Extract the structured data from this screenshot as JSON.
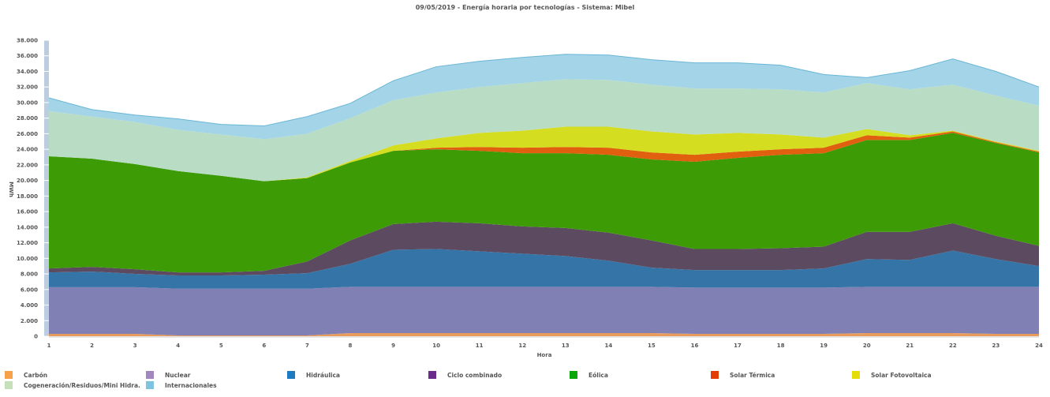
{
  "chart_data": {
    "type": "area",
    "stacked": true,
    "title": "09/05/2019 - Energía horaria por tecnologías - Sistema: Mibel",
    "xlabel": "Hora",
    "ylabel": "MWh",
    "ylim": [
      0,
      38000
    ],
    "yticks": [
      0,
      2000,
      4000,
      6000,
      8000,
      10000,
      12000,
      14000,
      16000,
      18000,
      20000,
      22000,
      24000,
      26000,
      28000,
      30000,
      32000,
      34000,
      36000,
      38000
    ],
    "ytick_labels": [
      "0",
      "2.000",
      "4.000",
      "6.000",
      "8.000",
      "10.000",
      "12.000",
      "14.000",
      "16.000",
      "18.000",
      "20.000",
      "22.000",
      "24.000",
      "26.000",
      "28.000",
      "30.000",
      "32.000",
      "34.000",
      "36.000",
      "38.000"
    ],
    "x": [
      "1",
      "2",
      "3",
      "4",
      "5",
      "6",
      "7",
      "8",
      "9",
      "10",
      "11",
      "12",
      "13",
      "14",
      "15",
      "16",
      "17",
      "18",
      "19",
      "20",
      "21",
      "22",
      "23",
      "24"
    ],
    "legend_position": "bottom",
    "series": [
      {
        "name": "Carbón",
        "color": "#e89c5c",
        "legend_color": "#f7a24a",
        "values": [
          300,
          300,
          300,
          100,
          100,
          100,
          100,
          400,
          400,
          400,
          400,
          400,
          400,
          400,
          400,
          300,
          300,
          300,
          300,
          400,
          400,
          400,
          300,
          300
        ]
      },
      {
        "name": "Nuclear",
        "color": "#8080b4",
        "legend_color": "#a187be",
        "values": [
          6000,
          6000,
          6000,
          6000,
          6000,
          6000,
          6000,
          5950,
          5950,
          5950,
          5950,
          5950,
          5950,
          5950,
          5950,
          5950,
          5950,
          5950,
          5950,
          5950,
          5950,
          5950,
          6050,
          6050
        ]
      },
      {
        "name": "Hidráulica",
        "color": "#3574a6",
        "legend_color": "#1f7bc1",
        "values": [
          1900,
          2000,
          1700,
          1700,
          1700,
          1800,
          2000,
          2950,
          4750,
          4850,
          4550,
          4250,
          3950,
          3350,
          2450,
          2250,
          2250,
          2250,
          2450,
          3550,
          3450,
          4650,
          3550,
          2650
        ]
      },
      {
        "name": "Ciclo combinado",
        "color": "#5c4a60",
        "legend_color": "#6a2c8a",
        "values": [
          500,
          600,
          600,
          400,
          400,
          500,
          1500,
          3000,
          3300,
          3500,
          3600,
          3500,
          3600,
          3600,
          3500,
          2700,
          2700,
          2800,
          2800,
          3500,
          3600,
          3500,
          3000,
          2600
        ]
      },
      {
        "name": "Eólica",
        "color": "#3d9b05",
        "legend_color": "#0aa70a",
        "values": [
          14400,
          13900,
          13500,
          13000,
          12400,
          11500,
          10700,
          10000,
          9400,
          9300,
          9300,
          9400,
          9600,
          10000,
          10400,
          11200,
          11700,
          12000,
          12000,
          11800,
          11800,
          11600,
          11900,
          12000
        ]
      },
      {
        "name": "Solar Térmica",
        "color": "#e06010",
        "legend_color": "#e33d02",
        "values": [
          0,
          0,
          0,
          0,
          0,
          0,
          0,
          0,
          0,
          200,
          500,
          700,
          800,
          900,
          900,
          900,
          800,
          700,
          700,
          600,
          300,
          200,
          100,
          100
        ]
      },
      {
        "name": "Solar Fotovoltaica",
        "color": "#d4dd20",
        "legend_color": "#e5dd0a",
        "values": [
          0,
          0,
          0,
          0,
          0,
          0,
          100,
          200,
          700,
          1200,
          1800,
          2200,
          2600,
          2700,
          2700,
          2600,
          2400,
          1900,
          1300,
          800,
          300,
          100,
          100,
          100
        ]
      },
      {
        "name": "Cogeneración/Residuos/Mini Hidra.",
        "color": "#b9dcc5",
        "legend_color": "#c5e0b9",
        "values": [
          5800,
          5400,
          5400,
          5300,
          5300,
          5400,
          5600,
          5500,
          5800,
          5900,
          5900,
          6100,
          6100,
          6000,
          6000,
          5900,
          5700,
          5800,
          5800,
          5900,
          5900,
          5900,
          5900,
          5800
        ]
      },
      {
        "name": "Internacionales",
        "color": "#a3d4e8",
        "legend_color": "#7ec3e0",
        "values": [
          1700,
          900,
          900,
          1400,
          1300,
          1700,
          2200,
          1900,
          2500,
          3300,
          3300,
          3300,
          3200,
          3200,
          3200,
          3300,
          3300,
          3100,
          2300,
          700,
          2400,
          3300,
          3100,
          2400
        ]
      }
    ]
  }
}
